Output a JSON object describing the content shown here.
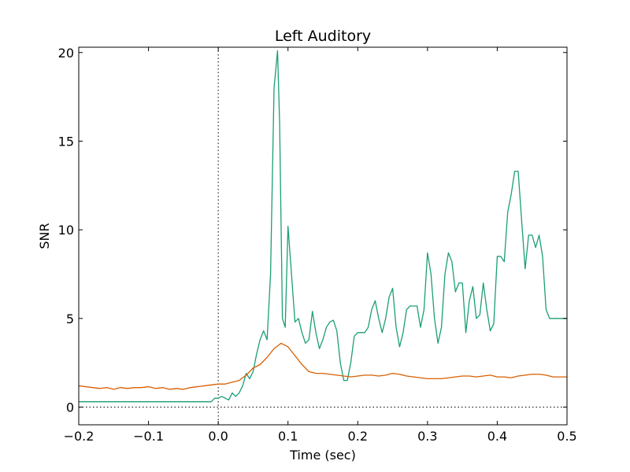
{
  "chart_data": {
    "type": "line",
    "title": "Left Auditory",
    "xlabel": "Time (sec)",
    "ylabel": "SNR",
    "xlim": [
      -0.2,
      0.5
    ],
    "ylim": [
      -1,
      20.3
    ],
    "xticks": [
      -0.2,
      -0.1,
      0.0,
      0.1,
      0.2,
      0.3,
      0.4,
      0.5
    ],
    "xtick_labels": [
      "−0.2",
      "−0.1",
      "0.0",
      "0.1",
      "0.2",
      "0.3",
      "0.4",
      "0.5"
    ],
    "yticks": [
      0,
      5,
      10,
      15,
      20
    ],
    "ytick_labels": [
      "0",
      "5",
      "10",
      "15",
      "20"
    ],
    "grid": false,
    "reference_lines": {
      "vertical_x": 0.0,
      "horizontal_y": 0.0,
      "style": "dotted"
    },
    "series": [
      {
        "color": "#1b9e77",
        "x": [
          -0.2,
          -0.01,
          -0.005,
          0.0,
          0.005,
          0.01,
          0.015,
          0.02,
          0.025,
          0.03,
          0.035,
          0.04,
          0.045,
          0.05,
          0.055,
          0.06,
          0.065,
          0.07,
          0.075,
          0.08,
          0.085,
          0.088,
          0.092,
          0.096,
          0.1,
          0.105,
          0.11,
          0.115,
          0.12,
          0.125,
          0.13,
          0.135,
          0.14,
          0.145,
          0.15,
          0.155,
          0.16,
          0.165,
          0.17,
          0.175,
          0.18,
          0.185,
          0.19,
          0.195,
          0.2,
          0.205,
          0.21,
          0.215,
          0.22,
          0.225,
          0.23,
          0.235,
          0.24,
          0.245,
          0.25,
          0.255,
          0.26,
          0.265,
          0.27,
          0.275,
          0.28,
          0.285,
          0.29,
          0.295,
          0.3,
          0.305,
          0.31,
          0.315,
          0.32,
          0.325,
          0.33,
          0.335,
          0.34,
          0.345,
          0.35,
          0.355,
          0.36,
          0.365,
          0.37,
          0.375,
          0.38,
          0.385,
          0.39,
          0.395,
          0.4,
          0.405,
          0.41,
          0.415,
          0.42,
          0.425,
          0.43,
          0.435,
          0.44,
          0.445,
          0.45,
          0.455,
          0.46,
          0.465,
          0.47,
          0.475,
          0.48,
          0.485,
          0.49,
          0.495,
          0.5
        ],
        "y": [
          0.3,
          0.3,
          0.5,
          0.5,
          0.6,
          0.5,
          0.4,
          0.8,
          0.6,
          0.8,
          1.2,
          1.9,
          1.6,
          2.0,
          3.0,
          3.8,
          4.3,
          3.8,
          7.5,
          18.0,
          20.1,
          16.0,
          5.0,
          4.5,
          10.2,
          7.5,
          4.8,
          5.0,
          4.2,
          3.6,
          3.8,
          5.4,
          4.2,
          3.3,
          3.8,
          4.5,
          4.8,
          4.9,
          4.3,
          2.5,
          1.5,
          1.5,
          2.5,
          4.0,
          4.2,
          4.2,
          4.2,
          4.5,
          5.5,
          6.0,
          5.0,
          4.2,
          5.0,
          6.2,
          6.7,
          4.5,
          3.4,
          4.2,
          5.5,
          5.7,
          5.7,
          5.7,
          4.5,
          5.5,
          8.7,
          7.5,
          5.0,
          3.6,
          4.5,
          7.5,
          8.7,
          8.2,
          6.5,
          7.0,
          7.0,
          4.2,
          6.0,
          6.8,
          5.0,
          5.2,
          7.0,
          5.5,
          4.3,
          4.7,
          8.5,
          8.5,
          8.2,
          11.0,
          12.0,
          13.3,
          13.3,
          10.5,
          7.8,
          9.7,
          9.7,
          9.0,
          9.7,
          8.5,
          5.5,
          5.0,
          5.0,
          5.0,
          5.0,
          5.0,
          5.0
        ]
      },
      {
        "color": "#d95f02",
        "x": [
          -0.2,
          -0.19,
          -0.18,
          -0.17,
          -0.16,
          -0.15,
          -0.14,
          -0.13,
          -0.12,
          -0.11,
          -0.1,
          -0.09,
          -0.08,
          -0.07,
          -0.06,
          -0.05,
          -0.04,
          -0.03,
          -0.02,
          -0.01,
          0.0,
          0.01,
          0.02,
          0.03,
          0.04,
          0.05,
          0.06,
          0.07,
          0.08,
          0.09,
          0.1,
          0.11,
          0.12,
          0.13,
          0.14,
          0.15,
          0.16,
          0.17,
          0.18,
          0.19,
          0.2,
          0.21,
          0.22,
          0.23,
          0.24,
          0.25,
          0.26,
          0.27,
          0.28,
          0.29,
          0.3,
          0.31,
          0.32,
          0.33,
          0.34,
          0.35,
          0.36,
          0.37,
          0.38,
          0.39,
          0.4,
          0.41,
          0.42,
          0.43,
          0.44,
          0.45,
          0.46,
          0.47,
          0.48,
          0.49,
          0.5
        ],
        "y": [
          1.2,
          1.15,
          1.1,
          1.05,
          1.1,
          1.0,
          1.1,
          1.05,
          1.1,
          1.1,
          1.15,
          1.05,
          1.1,
          1.0,
          1.05,
          1.0,
          1.1,
          1.15,
          1.2,
          1.25,
          1.3,
          1.3,
          1.4,
          1.5,
          1.8,
          2.2,
          2.4,
          2.8,
          3.3,
          3.6,
          3.4,
          2.9,
          2.4,
          2.0,
          1.9,
          1.9,
          1.85,
          1.8,
          1.75,
          1.7,
          1.75,
          1.8,
          1.8,
          1.75,
          1.8,
          1.9,
          1.85,
          1.75,
          1.7,
          1.65,
          1.6,
          1.6,
          1.6,
          1.65,
          1.7,
          1.75,
          1.75,
          1.7,
          1.75,
          1.8,
          1.7,
          1.7,
          1.65,
          1.75,
          1.8,
          1.85,
          1.85,
          1.8,
          1.7,
          1.7,
          1.7
        ]
      }
    ]
  }
}
